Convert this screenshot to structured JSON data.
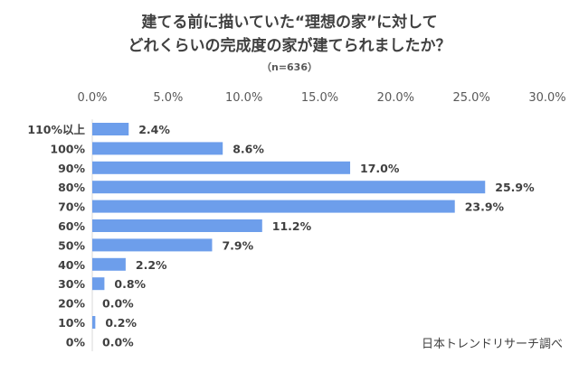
{
  "title_line1": "建てる前に描いていた“理想の家”に対して",
  "title_line2": "どれくらいの完成度の家が建てられましたか？",
  "subtitle": "（n=636）",
  "source": "日本トレンドリサーチ調べ",
  "chart_data": {
    "type": "bar",
    "orientation": "horizontal",
    "title": "建てる前に描いていた“理想の家”に対して どれくらいの完成度の家が建てられましたか？",
    "categories": [
      "110%以上",
      "100%",
      "90%",
      "80%",
      "70%",
      "60%",
      "50%",
      "40%",
      "30%",
      "20%",
      "10%",
      "0%"
    ],
    "values": [
      2.4,
      8.6,
      17.0,
      25.9,
      23.9,
      11.2,
      7.9,
      2.2,
      0.8,
      0.0,
      0.2,
      0.0
    ],
    "value_labels": [
      "2.4%",
      "8.6%",
      "17.0%",
      "25.9%",
      "23.9%",
      "11.2%",
      "7.9%",
      "2.2%",
      "0.8%",
      "0.0%",
      "0.2%",
      "0.0%"
    ],
    "xlim": [
      0,
      30
    ],
    "xticks": [
      0,
      5,
      10,
      15,
      20,
      25,
      30
    ],
    "xtick_labels": [
      "0.0%",
      "5.0%",
      "10.0%",
      "15.0%",
      "20.0%",
      "25.0%",
      "30.0%"
    ],
    "axis_position": "top",
    "grid": false,
    "bar_color": "#6d9eeb",
    "unit": "%"
  }
}
